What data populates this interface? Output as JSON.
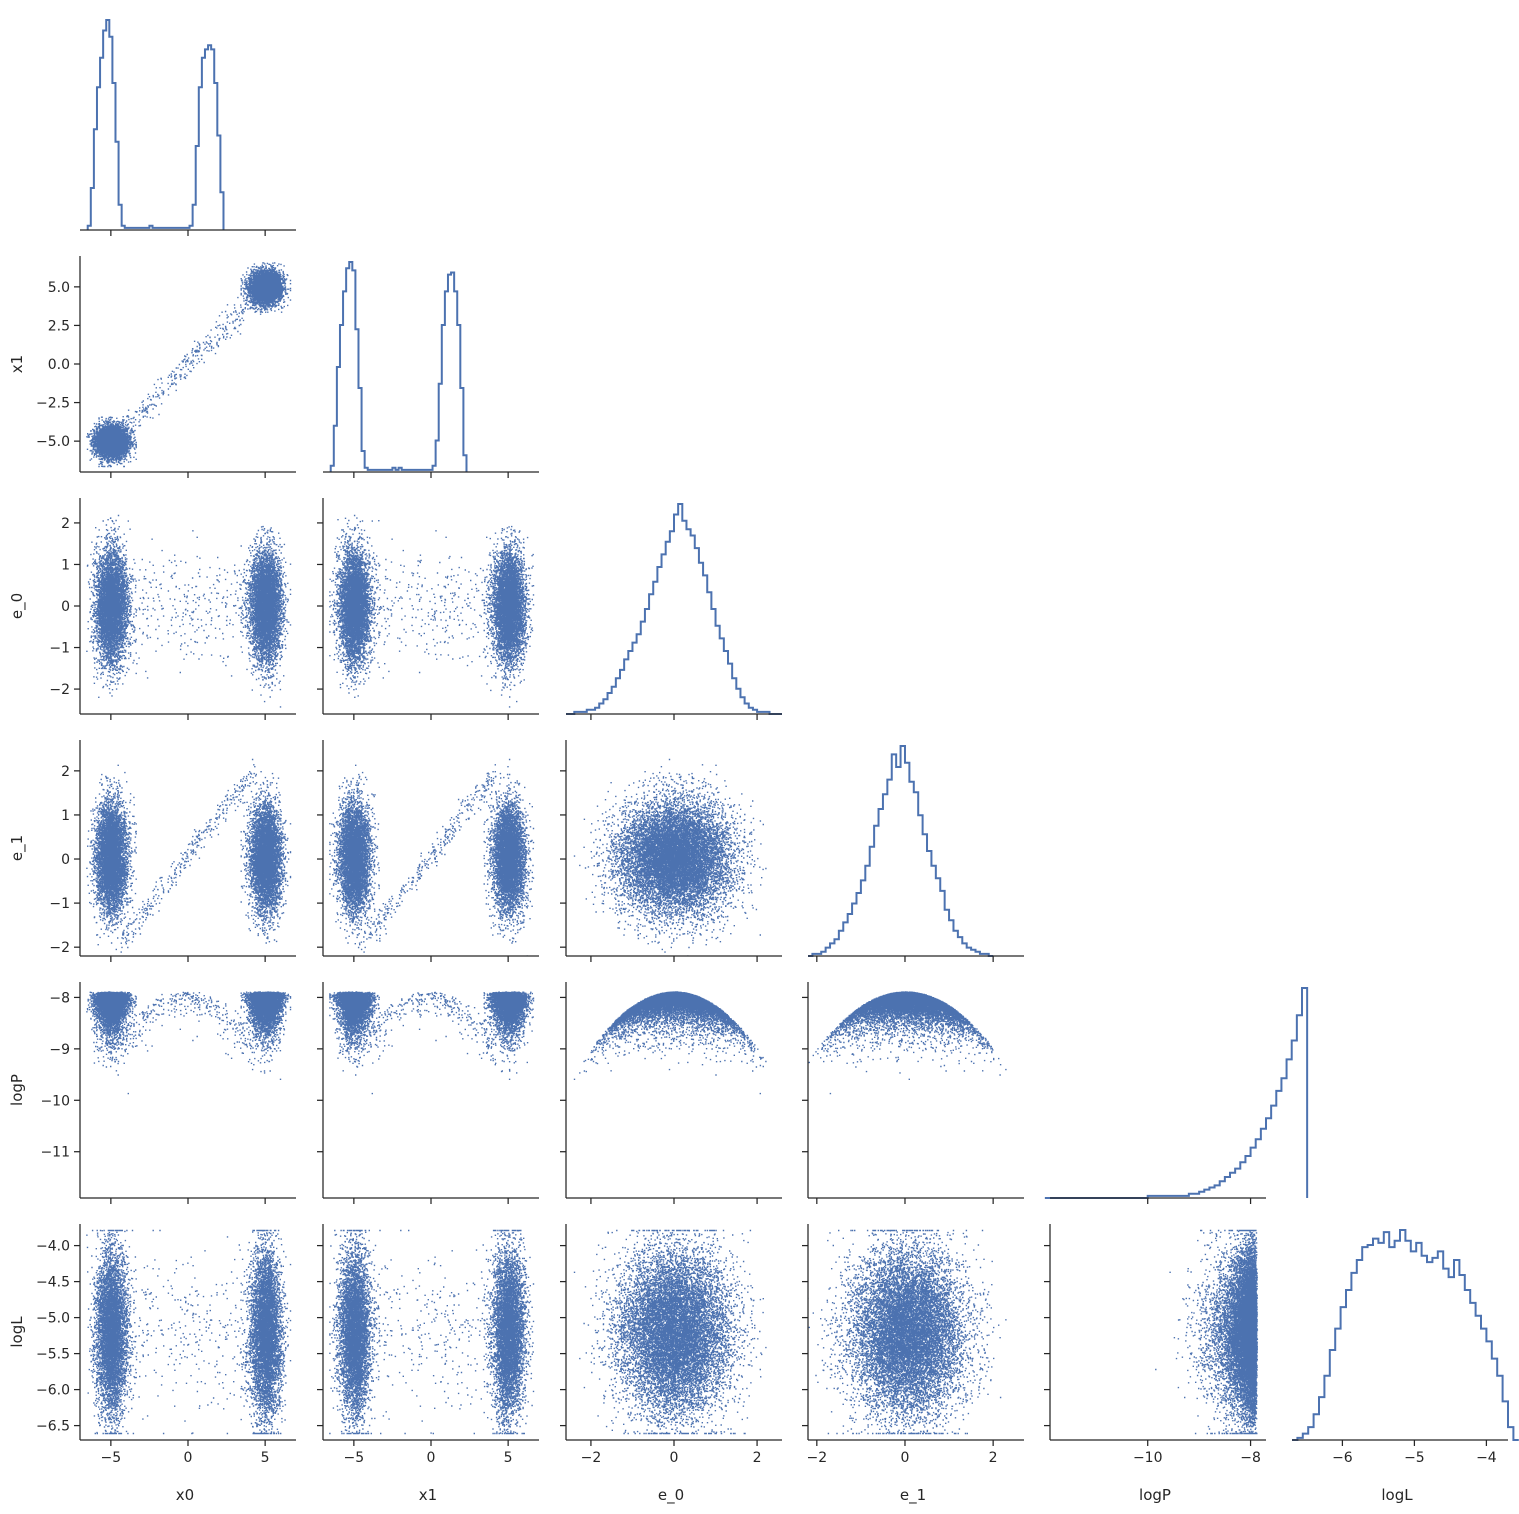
{
  "chart_data": {
    "type": "corner-plot",
    "variables": [
      "x0",
      "x1",
      "e_0",
      "e_1",
      "logP",
      "logL"
    ],
    "axis_ranges": {
      "x0": [
        -7.0,
        7.0
      ],
      "x1": [
        -7.0,
        7.0
      ],
      "e_0": [
        -2.6,
        2.6
      ],
      "e_1": [
        -2.2,
        2.7
      ],
      "logP": [
        -11.9,
        -7.7
      ],
      "logL": [
        -6.7,
        -3.7
      ]
    },
    "ticks": {
      "x0": [
        -5,
        0,
        5
      ],
      "x1": [
        -5,
        0,
        5
      ],
      "e_0": [
        -2,
        0,
        2
      ],
      "e_1": [
        -2,
        0,
        2
      ],
      "logP": [
        -10,
        -8
      ],
      "logL": [
        -6,
        -5,
        -4
      ]
    },
    "y_ticks": {
      "x1": [
        -5.0,
        -2.5,
        0.0,
        2.5,
        5.0
      ],
      "e_0": [
        -2,
        -1,
        0,
        1,
        2
      ],
      "e_1": [
        -2,
        -1,
        0,
        1,
        2
      ],
      "logP": [
        -11,
        -10,
        -9,
        -8
      ],
      "logL": [
        -6.5,
        -6.0,
        -5.5,
        -5.0,
        -4.5,
        -4.0
      ]
    },
    "tick_labels": {
      "x0": [
        "−5",
        "0",
        "5"
      ],
      "x1": [
        "−5",
        "0",
        "5"
      ],
      "e_0": [
        "−2",
        "0",
        "2"
      ],
      "e_1": [
        "−2",
        "0",
        "2"
      ],
      "logP": [
        "−10",
        "−8"
      ],
      "logL": [
        "−6",
        "−5",
        "−4"
      ]
    },
    "y_tick_labels": {
      "x1": [
        "−5.0",
        "−2.5",
        "0.0",
        "2.5",
        "5.0"
      ],
      "e_0": [
        "−2",
        "−1",
        "0",
        "1",
        "2"
      ],
      "e_1": [
        "−2",
        "−1",
        "0",
        "1",
        "2"
      ],
      "logP": [
        "−11",
        "−10",
        "−9",
        "−8"
      ],
      "logL": [
        "−6.5",
        "−6.0",
        "−5.5",
        "−5.0",
        "−4.5",
        "−4.0"
      ]
    },
    "histograms": {
      "x0": {
        "start": -6.5,
        "step": 0.2,
        "counts": [
          2,
          20,
          48,
          68,
          82,
          95,
          100,
          92,
          70,
          42,
          12,
          2,
          1,
          1,
          1,
          1,
          1,
          1,
          1,
          1,
          2,
          1,
          1,
          1,
          1,
          1,
          1,
          1,
          1,
          1,
          1,
          1,
          1,
          2,
          12,
          40,
          68,
          82,
          86,
          88,
          86,
          70,
          45,
          18
        ]
      },
      "x1": {
        "start": -6.5,
        "step": 0.2,
        "counts": [
          3,
          22,
          50,
          70,
          86,
          97,
          100,
          96,
          68,
          40,
          10,
          2,
          1,
          1,
          1,
          1,
          1,
          1,
          1,
          1,
          2,
          1,
          2,
          1,
          1,
          1,
          1,
          1,
          1,
          1,
          1,
          1,
          1,
          3,
          15,
          42,
          70,
          86,
          94,
          95,
          86,
          70,
          40,
          8
        ]
      },
      "e_0": {
        "start": -2.6,
        "step": 0.1,
        "counts": [
          0,
          0,
          1,
          1,
          1,
          2,
          2,
          3,
          5,
          7,
          10,
          13,
          17,
          21,
          26,
          30,
          34,
          38,
          44,
          50,
          57,
          63,
          70,
          76,
          82,
          87,
          95,
          100,
          92,
          88,
          85,
          79,
          72,
          66,
          58,
          50,
          42,
          36,
          30,
          24,
          17,
          12,
          8,
          5,
          3,
          2,
          1,
          1,
          1,
          0,
          0,
          0
        ]
      },
      "e_1": {
        "start": -2.2,
        "step": 0.1,
        "counts": [
          0,
          1,
          1,
          2,
          4,
          6,
          8,
          12,
          16,
          20,
          25,
          30,
          36,
          43,
          52,
          62,
          70,
          77,
          84,
          96,
          90,
          100,
          92,
          83,
          78,
          67,
          58,
          50,
          43,
          37,
          31,
          22,
          17,
          12,
          9,
          6,
          4,
          3,
          2,
          1,
          1,
          0
        ]
      },
      "logP": {
        "start": -12.0,
        "step": 0.1,
        "counts": [
          0,
          0,
          0,
          0,
          0,
          0,
          0,
          0,
          0,
          0,
          0,
          0,
          0,
          0,
          0,
          0,
          0,
          0,
          0,
          0,
          1,
          1,
          1,
          1,
          1,
          1,
          1,
          1,
          2,
          2,
          3,
          4,
          5,
          6,
          8,
          10,
          12,
          14,
          17,
          20,
          24,
          28,
          33,
          38,
          44,
          51,
          57,
          66,
          75,
          87,
          100
        ]
      },
      "logL": {
        "start": -6.7,
        "step": 0.075,
        "counts": [
          0,
          1,
          3,
          6,
          12,
          20,
          30,
          42,
          52,
          62,
          70,
          78,
          84,
          90,
          91,
          94,
          92,
          97,
          90,
          93,
          98,
          93,
          88,
          92,
          86,
          83,
          85,
          88,
          80,
          76,
          84,
          77,
          70,
          64,
          58,
          52,
          46,
          38,
          30,
          18,
          6,
          0
        ]
      }
    },
    "scatter_points_per_panel": 12000
  }
}
